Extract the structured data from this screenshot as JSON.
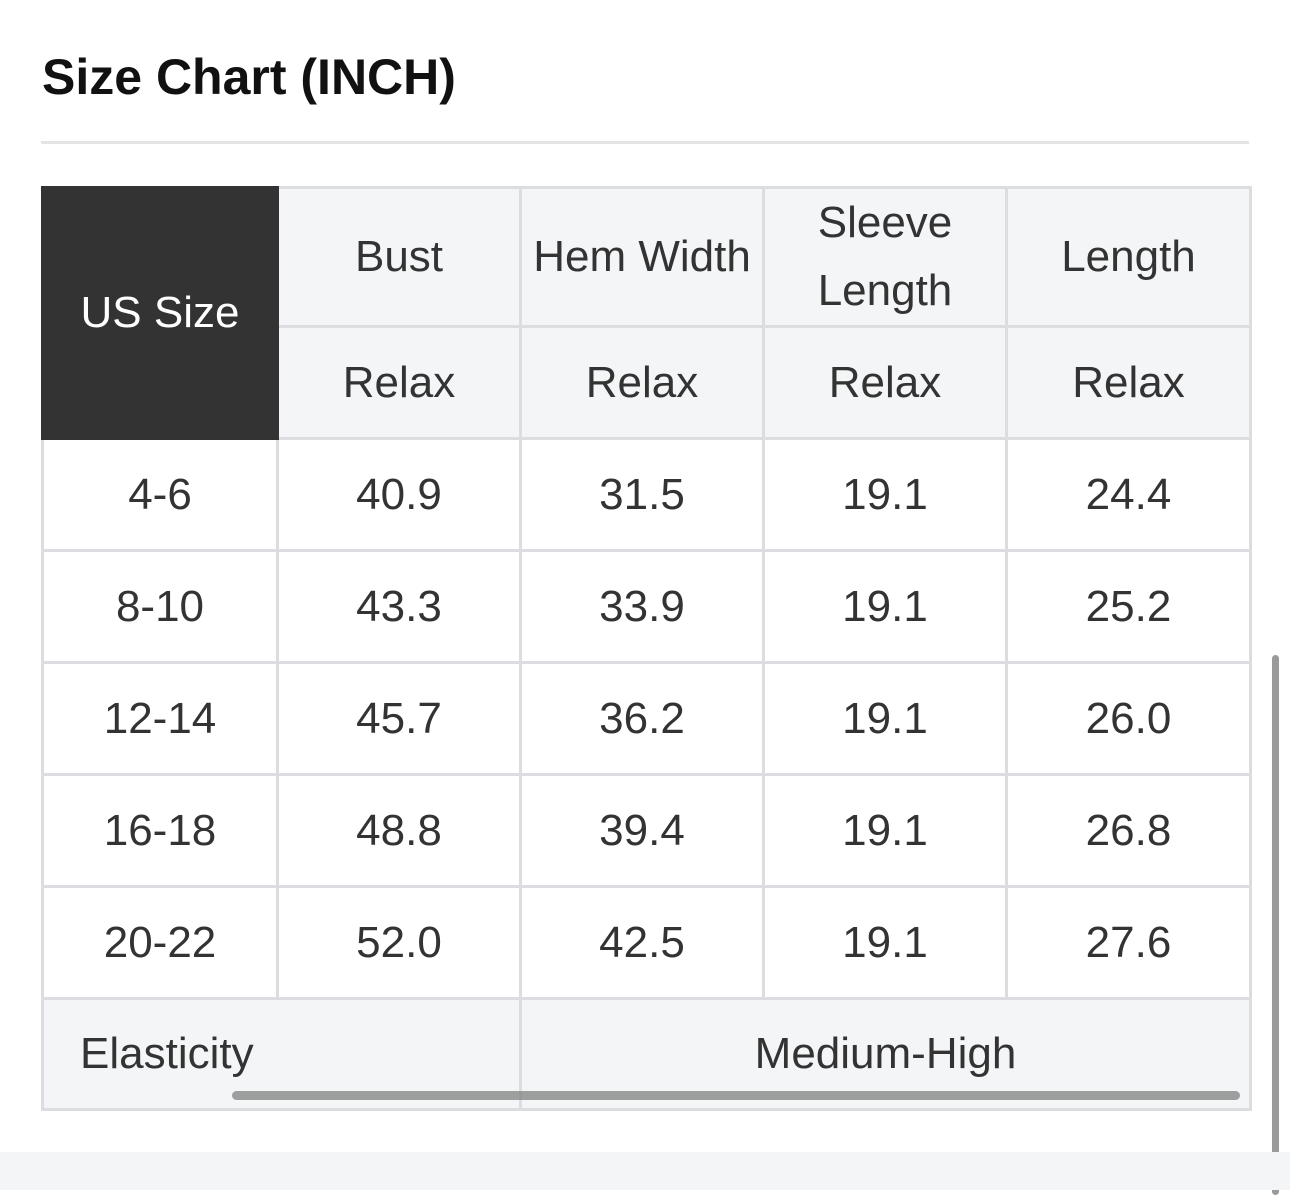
{
  "title": "Size Chart (INCH)",
  "table": {
    "first_header": "US Size",
    "headers": [
      "Bust",
      "Hem Width",
      "Sleeve Length",
      "Length"
    ],
    "subheaders": [
      "Relax",
      "Relax",
      "Relax",
      "Relax"
    ],
    "rows": [
      [
        "4-6",
        "40.9",
        "31.5",
        "19.1",
        "24.4"
      ],
      [
        "8-10",
        "43.3",
        "33.9",
        "19.1",
        "25.2"
      ],
      [
        "12-14",
        "45.7",
        "36.2",
        "19.1",
        "26.0"
      ],
      [
        "16-18",
        "48.8",
        "39.4",
        "19.1",
        "26.8"
      ],
      [
        "20-22",
        "52.0",
        "42.5",
        "19.1",
        "27.6"
      ]
    ],
    "elasticity_label": "Elasticity",
    "elasticity_value": "Medium-High"
  },
  "colors": {
    "header_dark": "#333333",
    "header_light": "#f4f5f7",
    "border": "#dcdde0"
  }
}
